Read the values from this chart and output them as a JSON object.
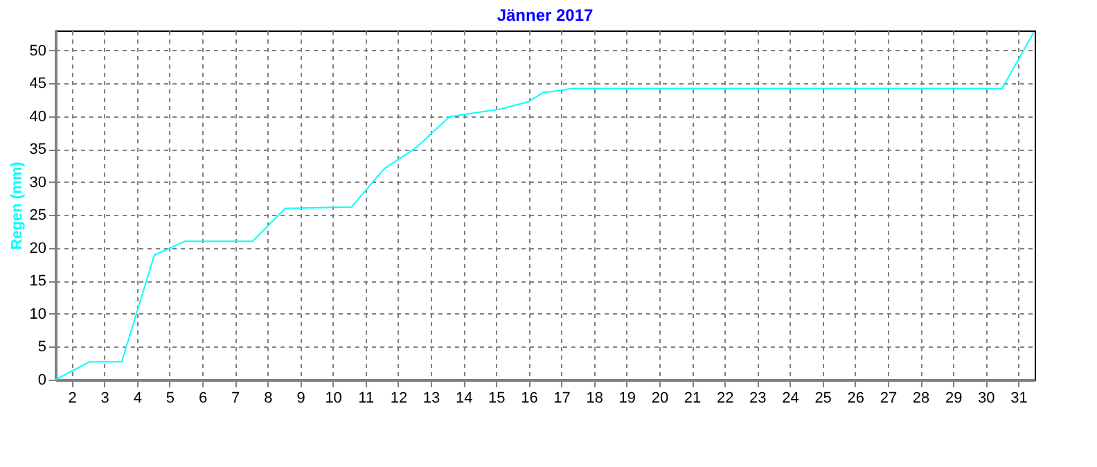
{
  "chart_data": {
    "type": "line",
    "title": "Jänner 2017",
    "ylabel": "Regen  (mm)",
    "x": [
      1.5,
      2.54,
      3.53,
      4.53,
      5.46,
      7.54,
      8.54,
      10.57,
      11.57,
      12.57,
      13.57,
      15.14,
      16.0,
      16.45,
      17.0,
      17.3,
      30.5,
      31.47
    ],
    "series": [
      {
        "color": "#00ffff",
        "values": [
          0,
          2.7,
          2.7,
          18.9,
          21.0,
          21.0,
          26.0,
          26.2,
          32.0,
          35.3,
          39.9,
          41.1,
          42.2,
          43.6,
          43.9,
          44.2,
          44.2,
          52.7
        ]
      }
    ],
    "xlim": [
      1.5,
      31.5
    ],
    "xticks": [
      2,
      3,
      4,
      5,
      6,
      7,
      8,
      9,
      10,
      11,
      12,
      13,
      14,
      15,
      16,
      17,
      18,
      19,
      20,
      21,
      22,
      23,
      24,
      25,
      26,
      27,
      28,
      29,
      30,
      31
    ],
    "ylim": [
      0,
      53
    ],
    "yticks": [
      0,
      5,
      10,
      15,
      20,
      25,
      30,
      35,
      40,
      45,
      50
    ],
    "grid": true,
    "marker": "none",
    "line_style": "solid"
  }
}
